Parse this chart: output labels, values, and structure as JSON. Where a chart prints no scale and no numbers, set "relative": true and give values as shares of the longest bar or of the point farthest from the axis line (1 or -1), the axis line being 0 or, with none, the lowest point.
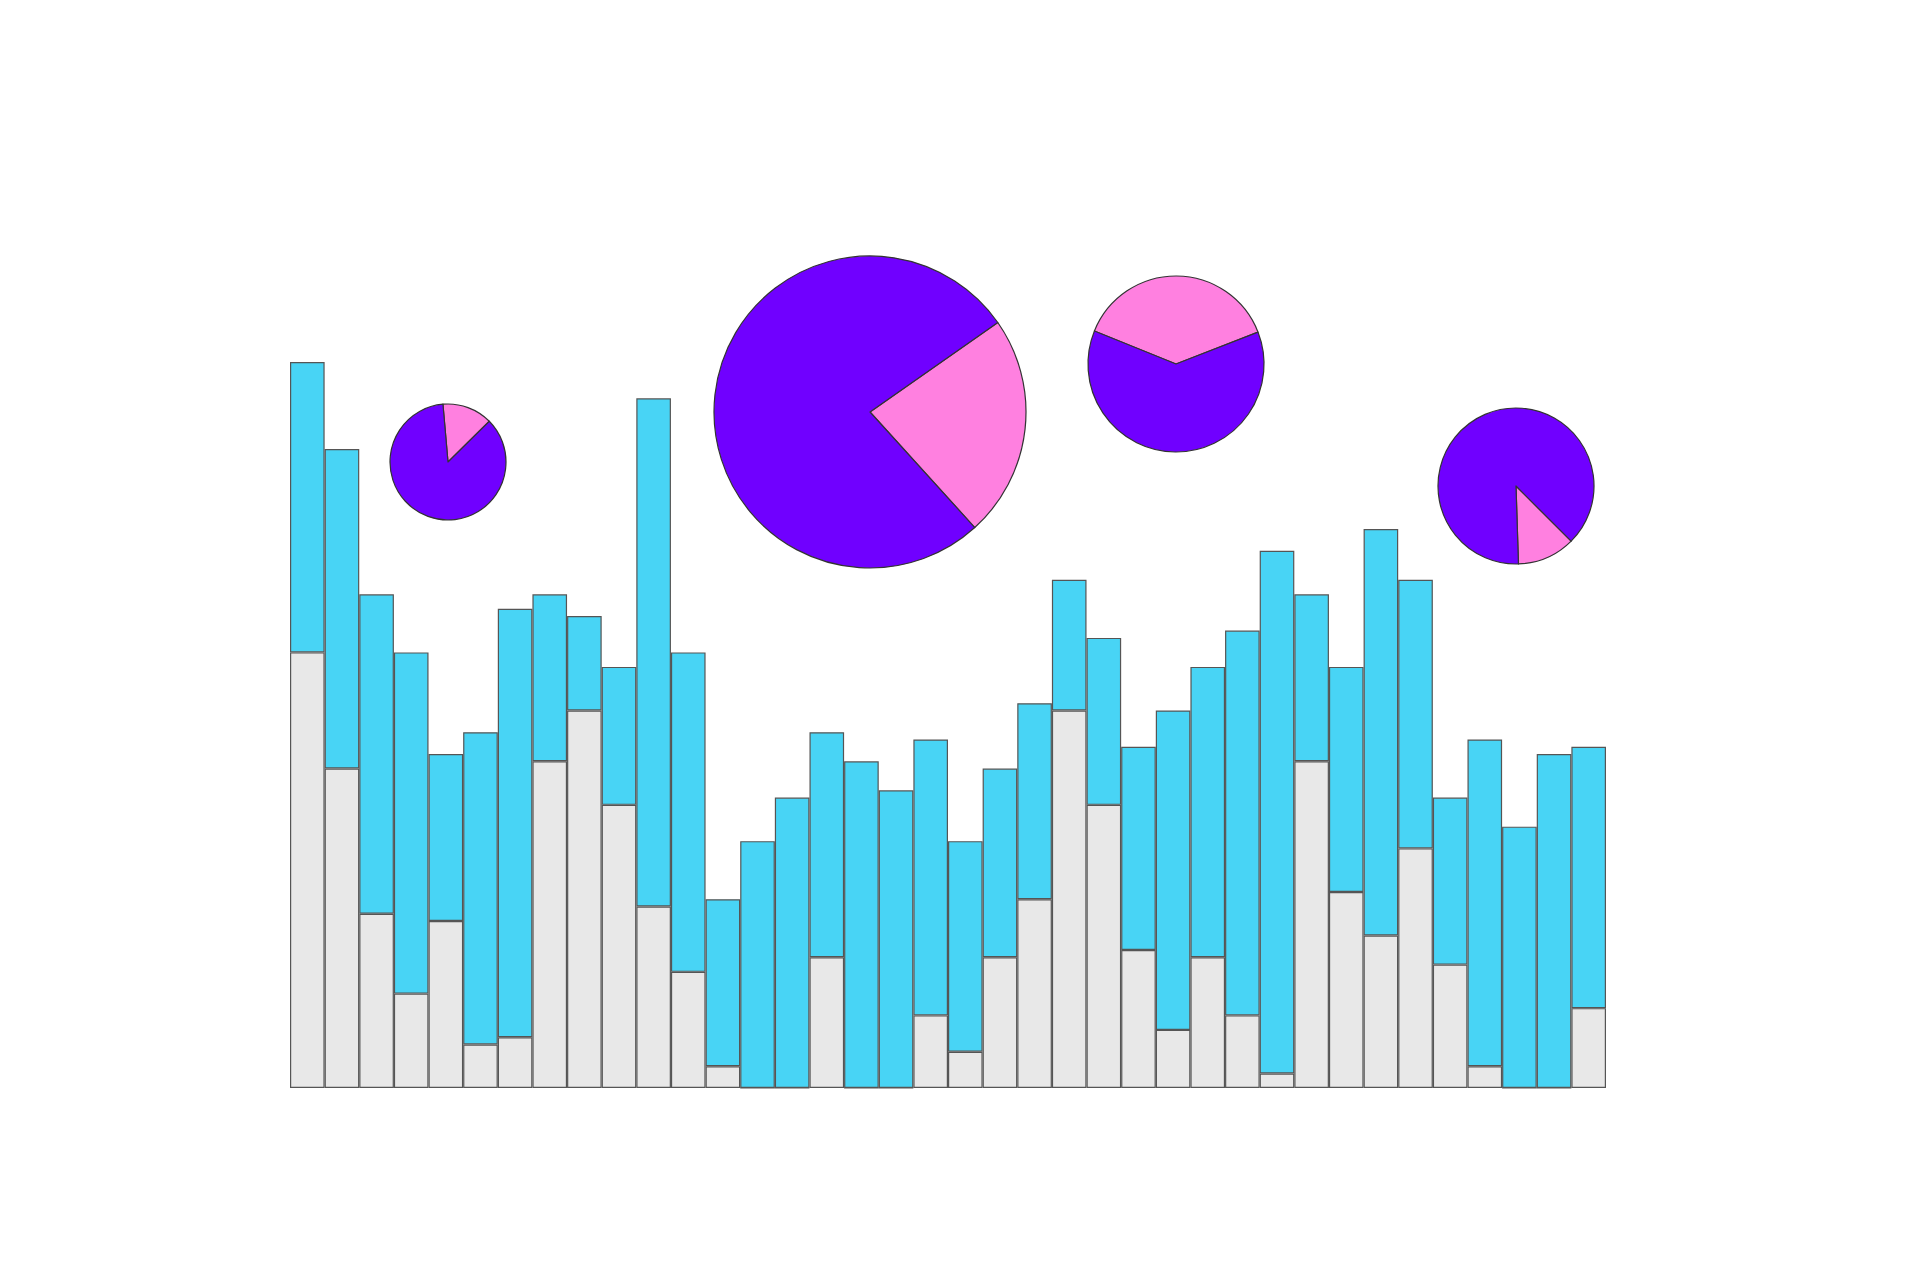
{
  "chart_data": [
    {
      "type": "bar",
      "relative": true,
      "stacked": true,
      "categories": [
        null,
        null,
        null,
        null,
        null,
        null,
        null,
        null,
        null,
        null,
        null,
        null,
        null,
        null,
        null,
        null,
        null,
        null,
        null,
        null,
        null,
        null,
        null,
        null,
        null,
        null,
        null,
        null,
        null,
        null,
        null,
        null,
        null,
        null,
        null,
        null,
        null,
        null
      ],
      "series": [
        {
          "color": "#e8e8e8",
          "values": [
            0.6,
            0.44,
            0.24,
            0.13,
            0.23,
            0.06,
            0.07,
            0.45,
            0.52,
            0.39,
            0.25,
            0.16,
            0.03,
            0,
            0,
            0.18,
            0,
            0,
            0.1,
            0.05,
            0.18,
            0.26,
            0.52,
            0.39,
            0.19,
            0.08,
            0.18,
            0.1,
            0.02,
            0.45,
            0.27,
            0.21,
            0.33,
            0.17,
            0.03,
            0,
            0,
            0.11
          ]
        },
        {
          "color": "#48d4f5",
          "values": [
            0.4,
            0.44,
            0.44,
            0.47,
            0.23,
            0.43,
            0.59,
            0.23,
            0.13,
            0.19,
            0.7,
            0.44,
            0.23,
            0.34,
            0.4,
            0.31,
            0.45,
            0.41,
            0.38,
            0.29,
            0.26,
            0.27,
            0.18,
            0.23,
            0.28,
            0.44,
            0.4,
            0.53,
            0.72,
            0.23,
            0.31,
            0.56,
            0.37,
            0.23,
            0.45,
            0.36,
            0.46,
            0.36
          ]
        }
      ]
    },
    {
      "type": "pie",
      "categories": [
        null,
        null
      ],
      "values": [
        14,
        86
      ],
      "colors": [
        "#ff80e0",
        "#7000ff"
      ]
    },
    {
      "type": "pie",
      "categories": [
        null,
        null
      ],
      "values": [
        23,
        77
      ],
      "colors": [
        "#ff80e0",
        "#7000ff"
      ]
    },
    {
      "type": "pie",
      "categories": [
        null,
        null
      ],
      "values": [
        38,
        62
      ],
      "colors": [
        "#ff80e0",
        "#7000ff"
      ]
    },
    {
      "type": "pie",
      "categories": [
        null,
        null
      ],
      "values": [
        12,
        88
      ],
      "colors": [
        "#ff80e0",
        "#7000ff"
      ]
    }
  ]
}
